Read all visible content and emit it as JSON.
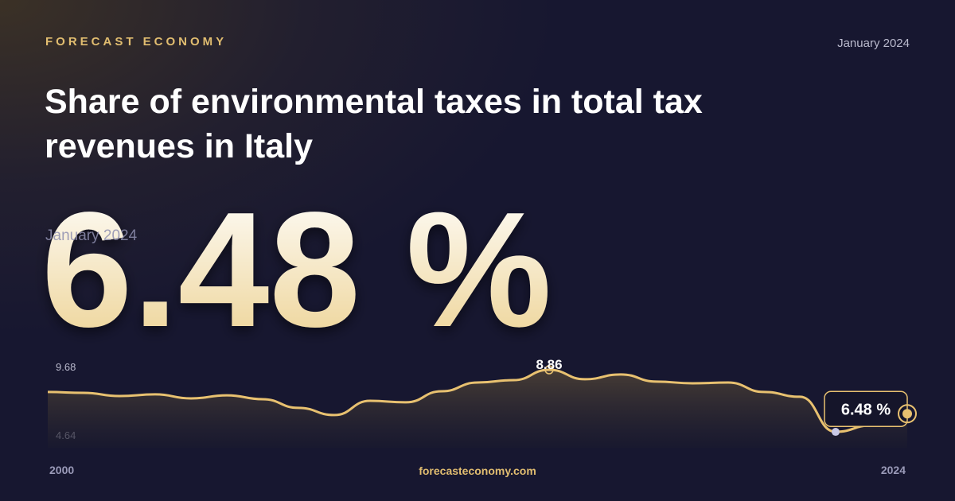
{
  "brand": "FORECAST ECONOMY",
  "date": "January 2024",
  "headline_date": "January 2024",
  "headline_value": "6.48 %",
  "footer": "forecasteconomy.com",
  "chart_data": {
    "type": "line",
    "title": "Share of environmental taxes in total tax revenues in Italy",
    "x": [
      2000,
      2001,
      2002,
      2003,
      2004,
      2005,
      2006,
      2007,
      2008,
      2009,
      2010,
      2011,
      2012,
      2013,
      2014,
      2015,
      2016,
      2017,
      2018,
      2019,
      2020,
      2021,
      2022,
      2023,
      2024
    ],
    "series": [
      {
        "name": "Share of environmental taxes",
        "color": "#e8c170",
        "values": [
          7.66,
          7.61,
          7.44,
          7.53,
          7.31,
          7.48,
          7.27,
          6.8,
          6.41,
          7.18,
          7.1,
          7.7,
          8.17,
          8.3,
          8.86,
          8.35,
          8.61,
          8.22,
          8.13,
          8.17,
          7.66,
          7.4,
          5.5,
          5.85,
          6.48
        ],
        "value_labels": [
          null,
          null,
          null,
          null,
          null,
          null,
          null,
          null,
          null,
          null,
          null,
          null,
          null,
          null,
          "8.86",
          null,
          null,
          null,
          null,
          null,
          null,
          null,
          null,
          null,
          "6.48 %"
        ]
      }
    ],
    "xlim": [
      2000,
      2024
    ],
    "xticks": [
      2000,
      2024
    ],
    "ylim": [
      4.64,
      9.68
    ],
    "yticks": [
      9.68,
      4.64
    ]
  }
}
